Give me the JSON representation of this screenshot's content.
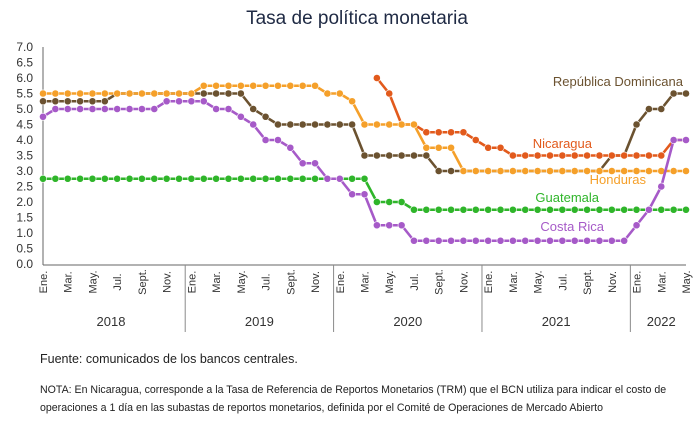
{
  "chart_data": {
    "type": "line",
    "title": "Tasa de política monetaria",
    "ylim": [
      0,
      7
    ],
    "yticks": [
      "0.0",
      "0.5",
      "1.0",
      "1.5",
      "2.0",
      "2.5",
      "3.0",
      "3.5",
      "4.0",
      "4.5",
      "5.0",
      "5.5",
      "6.0",
      "6.5",
      "7.0"
    ],
    "grid": false,
    "legend": "none (direct labels)",
    "month_labels": [
      "Ene.",
      "Mar.",
      "May.",
      "Jul.",
      "Sept.",
      "Nov."
    ],
    "years": [
      "2018",
      "2019",
      "2020",
      "2021",
      "2022"
    ],
    "period_start": "2018-01",
    "period_end": "2022-05",
    "series": [
      {
        "name": "República Dominicana",
        "color": "#6b5230",
        "values": [
          5.25,
          5.25,
          5.25,
          5.25,
          5.25,
          5.25,
          5.5,
          5.5,
          5.5,
          5.5,
          5.5,
          5.5,
          5.5,
          5.5,
          5.5,
          5.5,
          5.5,
          5.0,
          4.75,
          4.5,
          4.5,
          4.5,
          4.5,
          4.5,
          4.5,
          4.5,
          3.5,
          3.5,
          3.5,
          3.5,
          3.5,
          3.5,
          3.0,
          3.0,
          3.0,
          3.0,
          3.0,
          3.0,
          3.0,
          3.0,
          3.0,
          3.0,
          3.0,
          3.0,
          3.0,
          3.0,
          3.5,
          3.5,
          4.5,
          5.0,
          5.0,
          5.5,
          5.5
        ]
      },
      {
        "name": "Nicaragua",
        "color": "#e25a1c",
        "values": [
          null,
          null,
          null,
          null,
          null,
          null,
          null,
          null,
          null,
          null,
          null,
          null,
          null,
          null,
          null,
          null,
          null,
          null,
          null,
          null,
          null,
          null,
          null,
          null,
          null,
          null,
          null,
          6.0,
          5.5,
          4.5,
          4.5,
          4.25,
          4.25,
          4.25,
          4.25,
          4.0,
          3.75,
          3.75,
          3.5,
          3.5,
          3.5,
          3.5,
          3.5,
          3.5,
          3.5,
          3.5,
          3.5,
          3.5,
          3.5,
          3.5,
          3.5,
          4.0,
          4.0
        ]
      },
      {
        "name": "Honduras",
        "color": "#f5a02a",
        "values": [
          5.5,
          5.5,
          5.5,
          5.5,
          5.5,
          5.5,
          5.5,
          5.5,
          5.5,
          5.5,
          5.5,
          5.5,
          5.5,
          5.75,
          5.75,
          5.75,
          5.75,
          5.75,
          5.75,
          5.75,
          5.75,
          5.75,
          5.75,
          5.5,
          5.5,
          5.25,
          4.5,
          4.5,
          4.5,
          4.5,
          4.5,
          3.75,
          3.75,
          3.75,
          3.0,
          3.0,
          3.0,
          3.0,
          3.0,
          3.0,
          3.0,
          3.0,
          3.0,
          3.0,
          3.0,
          3.0,
          3.0,
          3.0,
          3.0,
          3.0,
          3.0,
          3.0,
          3.0
        ]
      },
      {
        "name": "Guatemala",
        "color": "#2fb52a",
        "values": [
          2.75,
          2.75,
          2.75,
          2.75,
          2.75,
          2.75,
          2.75,
          2.75,
          2.75,
          2.75,
          2.75,
          2.75,
          2.75,
          2.75,
          2.75,
          2.75,
          2.75,
          2.75,
          2.75,
          2.75,
          2.75,
          2.75,
          2.75,
          2.75,
          2.75,
          2.75,
          2.75,
          2.0,
          2.0,
          2.0,
          1.75,
          1.75,
          1.75,
          1.75,
          1.75,
          1.75,
          1.75,
          1.75,
          1.75,
          1.75,
          1.75,
          1.75,
          1.75,
          1.75,
          1.75,
          1.75,
          1.75,
          1.75,
          1.75,
          1.75,
          1.75,
          1.75,
          1.75
        ]
      },
      {
        "name": "Costa Rica",
        "color": "#a65ac8",
        "values": [
          4.75,
          5.0,
          5.0,
          5.0,
          5.0,
          5.0,
          5.0,
          5.0,
          5.0,
          5.0,
          5.25,
          5.25,
          5.25,
          5.25,
          5.0,
          5.0,
          4.75,
          4.5,
          4.0,
          4.0,
          3.75,
          3.25,
          3.25,
          2.75,
          2.75,
          2.25,
          2.25,
          1.25,
          1.25,
          1.25,
          0.75,
          0.75,
          0.75,
          0.75,
          0.75,
          0.75,
          0.75,
          0.75,
          0.75,
          0.75,
          0.75,
          0.75,
          0.75,
          0.75,
          0.75,
          0.75,
          0.75,
          0.75,
          1.25,
          1.75,
          2.5,
          4.0,
          4.0
        ]
      }
    ]
  },
  "footer": {
    "source": "Fuente: comunicados de los bancos centrales.",
    "note": "NOTA: En Nicaragua, corresponde a la Tasa de Referencia de Reportos Monetarios (TRM) que el BCN utiliza para indicar el costo de operaciones a 1 día en las subastas de reportos monetarios, definida por el Comité de Operaciones de Mercado Abierto"
  }
}
